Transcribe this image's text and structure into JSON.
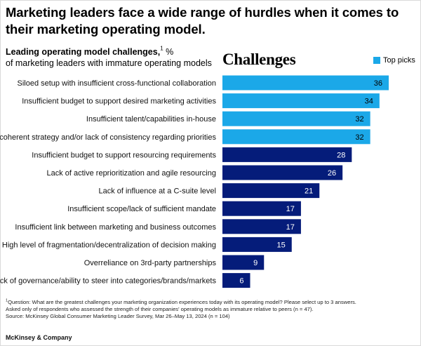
{
  "headline": "Marketing leaders face a wide range of hurdles when it comes to their marketing operating model.",
  "subtitle": {
    "bold": "Leading operating model challenges,",
    "sup": "1",
    "unit": " %",
    "line2": "of marketing leaders with immature operating models"
  },
  "chart_heading": "Challenges",
  "legend": {
    "label": "Top picks",
    "color": "#1ba8e8"
  },
  "footnotes": {
    "sup": "1",
    "question": "Question: What are the greatest challenges your marketing organization experiences today with its operating model? Please select up to 3 answers.",
    "asked": "Asked only of respondents who assessed the strength of their companies' operating models as immature relative to peers (n = 47).",
    "source": "Source: McKinsey Global Consumer Marketing Leader Survey, Mar 26–May 13, 2024 (n = 104)"
  },
  "brand": "McKinsey & Company",
  "chart_data": {
    "type": "bar",
    "orientation": "horizontal",
    "title": "Challenges",
    "categories": [
      "Siloed setup with insufficient cross-functional collaboration",
      "Insufficient budget to support desired marketing activities",
      "Insufficient talent/capabilities in-house",
      "Incoherent strategy and/or lack of consistency regarding priorities",
      "Insufficient budget to support resourcing requirements",
      "Lack of active reprioritization and agile resourcing",
      "Lack of influence at a C-suite level",
      "Insufficient scope/lack of sufficient mandate",
      "Insufficient link between marketing and business outcomes",
      "High level of fragmentation/decentralization of decision making",
      "Overreliance on 3rd-party partnerships",
      "Lack of governance/ability to steer into categories/brands/markets"
    ],
    "values": [
      36,
      34,
      32,
      32,
      28,
      26,
      21,
      17,
      17,
      15,
      9,
      6
    ],
    "top_picks": [
      true,
      true,
      true,
      true,
      false,
      false,
      false,
      false,
      false,
      false,
      false,
      false
    ],
    "colors": {
      "top_pick": "#1ba8e8",
      "other": "#051c7a"
    },
    "xlim": [
      0,
      36
    ],
    "grid": false,
    "legend_position": "top-right"
  }
}
